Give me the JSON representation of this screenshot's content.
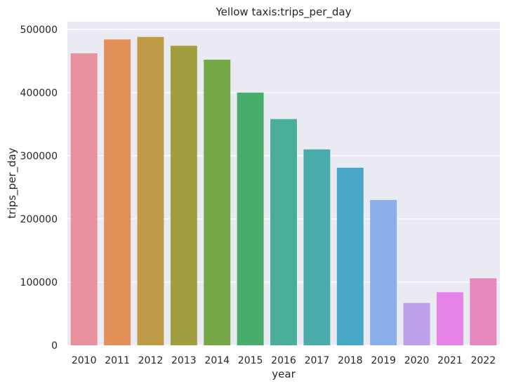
{
  "chart_data": {
    "type": "bar",
    "title": "Yellow taxis:trips_per_day",
    "xlabel": "year",
    "ylabel": "trips_per_day",
    "categories": [
      "2010",
      "2011",
      "2012",
      "2013",
      "2014",
      "2015",
      "2016",
      "2017",
      "2018",
      "2019",
      "2020",
      "2021",
      "2022"
    ],
    "values": [
      462000,
      484000,
      488000,
      474000,
      452000,
      400000,
      358000,
      310000,
      281000,
      230000,
      67000,
      84000,
      106000
    ],
    "colors": [
      "#e8919e",
      "#e28f58",
      "#bf9b47",
      "#a09e3f",
      "#74a846",
      "#47ad6b",
      "#49ae9a",
      "#4bacac",
      "#4aa8c7",
      "#8aaee8",
      "#bca1ea",
      "#e583e8",
      "#e488bd"
    ],
    "ylim": [
      0,
      512000
    ],
    "yticks": [
      0,
      100000,
      200000,
      300000,
      400000,
      500000
    ],
    "ytick_labels": [
      "0",
      "100000",
      "200000",
      "300000",
      "400000",
      "500000"
    ],
    "grid": true,
    "background": "#eaeaf2",
    "grid_color": "#ffffff"
  }
}
